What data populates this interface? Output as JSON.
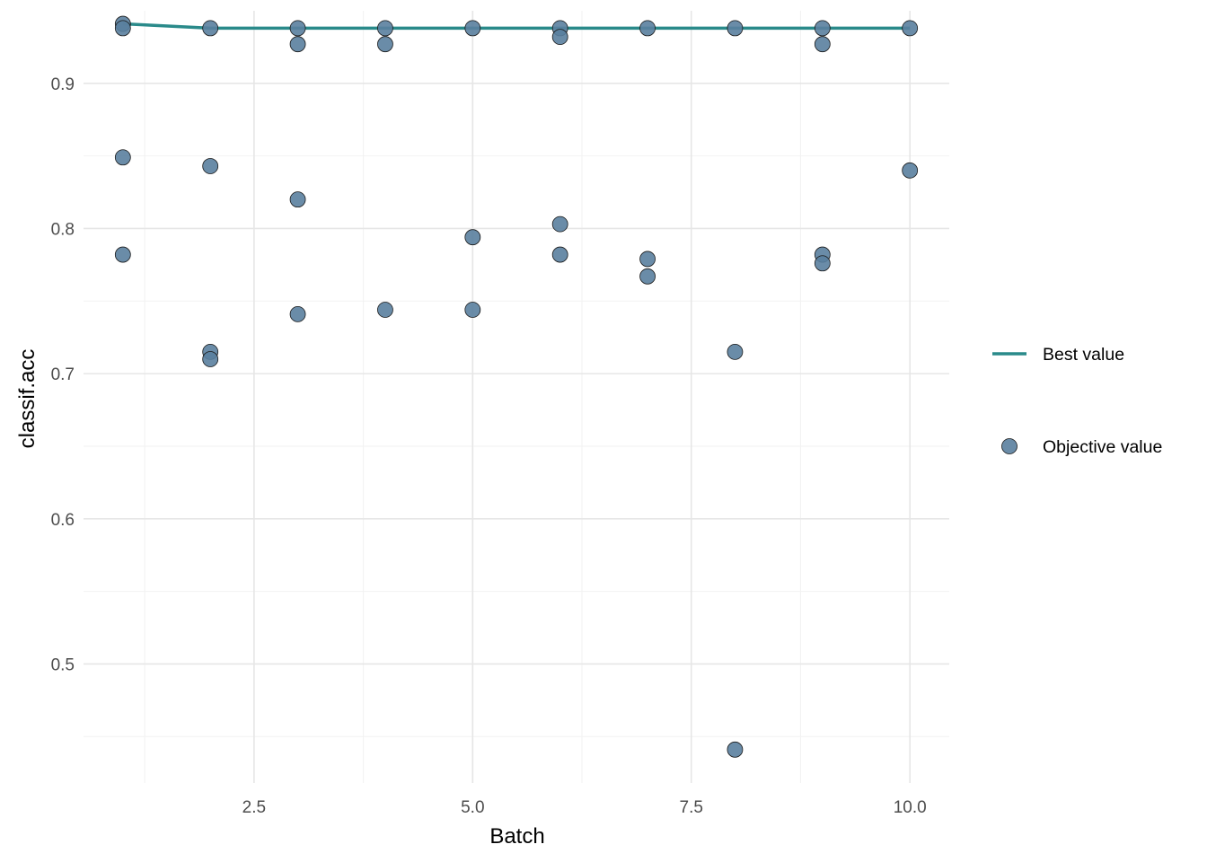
{
  "chart_data": {
    "type": "scatter",
    "xlabel": "Batch",
    "ylabel": "classif.acc",
    "xlim": [
      0.55,
      10.45
    ],
    "ylim": [
      0.418,
      0.95
    ],
    "x_ticks": [
      2.5,
      5.0,
      7.5,
      10.0
    ],
    "x_tick_labels": [
      "2.5",
      "5.0",
      "7.5",
      "10.0"
    ],
    "y_ticks": [
      0.5,
      0.6,
      0.7,
      0.8,
      0.9
    ],
    "y_tick_labels": [
      "0.5",
      "0.6",
      "0.7",
      "0.8",
      "0.9"
    ],
    "grid": true,
    "legend_position": "right",
    "series": [
      {
        "name": "Best value",
        "kind": "line",
        "color": "#2a8a8a",
        "x": [
          1,
          2,
          3,
          4,
          5,
          6,
          7,
          8,
          9,
          10
        ],
        "y": [
          0.941,
          0.938,
          0.938,
          0.938,
          0.938,
          0.938,
          0.938,
          0.938,
          0.938,
          0.938
        ]
      },
      {
        "name": "Objective value",
        "kind": "points",
        "color": "#5a7f9f",
        "points": [
          [
            1,
            0.941
          ],
          [
            1,
            0.938
          ],
          [
            1,
            0.849
          ],
          [
            1,
            0.782
          ],
          [
            2,
            0.938
          ],
          [
            2,
            0.843
          ],
          [
            2,
            0.715
          ],
          [
            2,
            0.71
          ],
          [
            3,
            0.938
          ],
          [
            3,
            0.927
          ],
          [
            3,
            0.82
          ],
          [
            3,
            0.741
          ],
          [
            4,
            0.938
          ],
          [
            4,
            0.927
          ],
          [
            4,
            0.744
          ],
          [
            5,
            0.938
          ],
          [
            5,
            0.794
          ],
          [
            5,
            0.744
          ],
          [
            6,
            0.938
          ],
          [
            6,
            0.932
          ],
          [
            6,
            0.803
          ],
          [
            6,
            0.782
          ],
          [
            7,
            0.938
          ],
          [
            7,
            0.779
          ],
          [
            7,
            0.767
          ],
          [
            8,
            0.938
          ],
          [
            8,
            0.715
          ],
          [
            8,
            0.441
          ],
          [
            9,
            0.938
          ],
          [
            9,
            0.927
          ],
          [
            9,
            0.782
          ],
          [
            9,
            0.776
          ],
          [
            10,
            0.938
          ],
          [
            10,
            0.84
          ]
        ]
      }
    ]
  }
}
